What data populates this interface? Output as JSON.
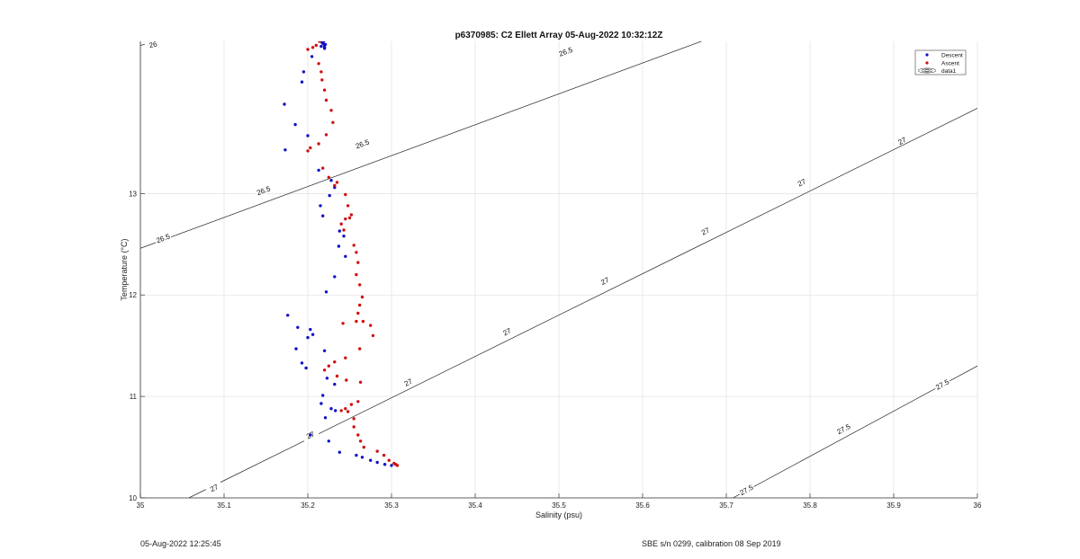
{
  "chart_data": {
    "type": "scatter",
    "title": "p6370985: C2 Ellett Array 05-Aug-2022 10:32:12Z",
    "xlabel": "Salinity (psu)",
    "ylabel": "Temperature (°C)",
    "xlim": [
      35,
      36
    ],
    "ylim": [
      10,
      14.5
    ],
    "xticks": [
      "35",
      "35.1",
      "35.2",
      "35.3",
      "35.4",
      "35.5",
      "35.6",
      "35.7",
      "35.8",
      "35.9",
      "36"
    ],
    "yticks": [
      "10",
      "11",
      "12",
      "13"
    ],
    "grid": true,
    "legend_position": "top-right",
    "legend": [
      "Descent",
      "Ascent",
      "data1"
    ],
    "colors": {
      "descent": "#1010c8",
      "ascent": "#d01010",
      "contour": "#222222",
      "grid": "#e4e4e4"
    },
    "density_contours": [
      {
        "label": "26",
        "points": [
          [
            35.0,
            14.46
          ],
          [
            35.035,
            14.53
          ]
        ],
        "labels_at": [
          [
            35.015,
            14.47
          ]
        ]
      },
      {
        "label": "26.5",
        "points": [
          [
            35.0,
            12.46
          ],
          [
            35.68,
            14.53
          ]
        ],
        "labels_at": [
          [
            35.027,
            12.56
          ],
          [
            35.147,
            13.03
          ],
          [
            35.265,
            13.49
          ],
          [
            35.508,
            14.4
          ],
          [
            35.627,
            14.85
          ]
        ]
      },
      {
        "label": "27",
        "points": [
          [
            35.058,
            10.0
          ],
          [
            36.0,
            13.84
          ]
        ],
        "labels_at": [
          [
            35.088,
            10.1
          ],
          [
            35.203,
            10.62
          ],
          [
            35.32,
            11.14
          ],
          [
            35.438,
            11.64
          ],
          [
            35.555,
            12.14
          ],
          [
            35.675,
            12.63
          ],
          [
            35.79,
            13.11
          ],
          [
            35.91,
            13.52
          ]
        ]
      },
      {
        "label": "27.5",
        "points": [
          [
            35.708,
            10.0
          ],
          [
            36.0,
            11.3
          ]
        ],
        "labels_at": [
          [
            35.724,
            10.08
          ],
          [
            35.84,
            10.68
          ],
          [
            35.958,
            11.12
          ]
        ]
      }
    ],
    "series": [
      {
        "name": "Descent",
        "points": [
          [
            35.216,
            14.45
          ],
          [
            35.218,
            14.48
          ],
          [
            35.22,
            14.46
          ],
          [
            35.221,
            14.47
          ],
          [
            35.219,
            14.5
          ],
          [
            35.22,
            14.44
          ],
          [
            35.217,
            14.49
          ],
          [
            35.22,
            14.43
          ],
          [
            35.205,
            14.35
          ],
          [
            35.195,
            14.2
          ],
          [
            35.193,
            14.1
          ],
          [
            35.172,
            13.88
          ],
          [
            35.185,
            13.68
          ],
          [
            35.173,
            13.43
          ],
          [
            35.2,
            13.57
          ],
          [
            35.213,
            13.23
          ],
          [
            35.228,
            13.13
          ],
          [
            35.232,
            13.06
          ],
          [
            35.226,
            12.98
          ],
          [
            35.215,
            12.88
          ],
          [
            35.218,
            12.78
          ],
          [
            35.238,
            12.63
          ],
          [
            35.243,
            12.58
          ],
          [
            35.237,
            12.48
          ],
          [
            35.245,
            12.38
          ],
          [
            35.232,
            12.18
          ],
          [
            35.222,
            12.03
          ],
          [
            35.176,
            11.8
          ],
          [
            35.188,
            11.68
          ],
          [
            35.203,
            11.66
          ],
          [
            35.206,
            11.61
          ],
          [
            35.2,
            11.58
          ],
          [
            35.186,
            11.47
          ],
          [
            35.22,
            11.45
          ],
          [
            35.193,
            11.33
          ],
          [
            35.198,
            11.28
          ],
          [
            35.223,
            11.18
          ],
          [
            35.232,
            11.12
          ],
          [
            35.218,
            11.01
          ],
          [
            35.216,
            10.93
          ],
          [
            35.228,
            10.88
          ],
          [
            35.233,
            10.86
          ],
          [
            35.221,
            10.79
          ],
          [
            35.203,
            10.62
          ],
          [
            35.225,
            10.56
          ],
          [
            35.238,
            10.45
          ],
          [
            35.258,
            10.42
          ],
          [
            35.265,
            10.4
          ],
          [
            35.275,
            10.37
          ],
          [
            35.283,
            10.35
          ],
          [
            35.292,
            10.33
          ],
          [
            35.3,
            10.32
          ]
        ]
      },
      {
        "name": "Ascent",
        "points": [
          [
            35.208,
            14.55
          ],
          [
            35.212,
            14.53
          ],
          [
            35.217,
            14.52
          ],
          [
            35.214,
            14.5
          ],
          [
            35.21,
            14.46
          ],
          [
            35.206,
            14.44
          ],
          [
            35.2,
            14.42
          ],
          [
            35.213,
            14.28
          ],
          [
            35.216,
            14.2
          ],
          [
            35.217,
            14.12
          ],
          [
            35.22,
            14.02
          ],
          [
            35.222,
            13.92
          ],
          [
            35.228,
            13.82
          ],
          [
            35.23,
            13.7
          ],
          [
            35.222,
            13.58
          ],
          [
            35.213,
            13.49
          ],
          [
            35.203,
            13.45
          ],
          [
            35.2,
            13.42
          ],
          [
            35.218,
            13.25
          ],
          [
            35.225,
            13.16
          ],
          [
            35.235,
            13.11
          ],
          [
            35.232,
            13.08
          ],
          [
            35.245,
            12.99
          ],
          [
            35.248,
            12.88
          ],
          [
            35.252,
            12.79
          ],
          [
            35.25,
            12.76
          ],
          [
            35.245,
            12.75
          ],
          [
            35.24,
            12.7
          ],
          [
            35.243,
            12.64
          ],
          [
            35.255,
            12.49
          ],
          [
            35.258,
            12.42
          ],
          [
            35.26,
            12.32
          ],
          [
            35.258,
            12.2
          ],
          [
            35.262,
            12.1
          ],
          [
            35.265,
            11.98
          ],
          [
            35.262,
            11.9
          ],
          [
            35.26,
            11.82
          ],
          [
            35.258,
            11.74
          ],
          [
            35.266,
            11.74
          ],
          [
            35.275,
            11.7
          ],
          [
            35.278,
            11.6
          ],
          [
            35.242,
            11.72
          ],
          [
            35.262,
            11.47
          ],
          [
            35.245,
            11.38
          ],
          [
            35.232,
            11.34
          ],
          [
            35.225,
            11.3
          ],
          [
            35.22,
            11.26
          ],
          [
            35.235,
            11.2
          ],
          [
            35.246,
            11.16
          ],
          [
            35.263,
            11.14
          ],
          [
            35.26,
            10.95
          ],
          [
            35.252,
            10.92
          ],
          [
            35.245,
            10.88
          ],
          [
            35.24,
            10.86
          ],
          [
            35.248,
            10.85
          ],
          [
            35.255,
            10.78
          ],
          [
            35.255,
            10.7
          ],
          [
            35.26,
            10.62
          ],
          [
            35.263,
            10.56
          ],
          [
            35.267,
            10.5
          ],
          [
            35.283,
            10.46
          ],
          [
            35.291,
            10.42
          ],
          [
            35.297,
            10.37
          ],
          [
            35.303,
            10.34
          ],
          [
            35.305,
            10.33
          ],
          [
            35.307,
            10.32
          ]
        ]
      }
    ]
  },
  "footer": {
    "timestamp": "05-Aug-2022 12:25:45",
    "sensor": "SBE s/n 0299, calibration 08 Sep 2019"
  }
}
